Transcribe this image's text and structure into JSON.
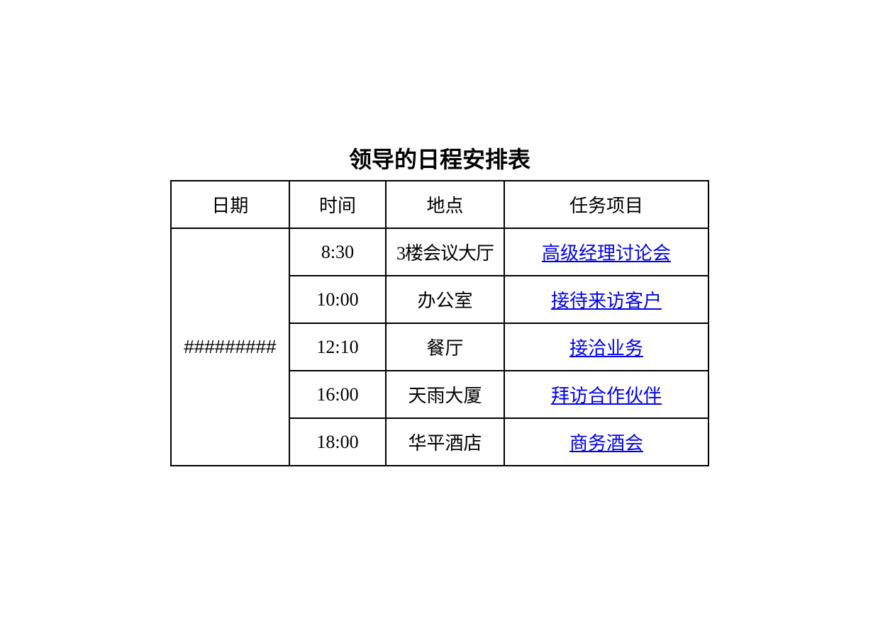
{
  "title": "领导的日程安排表",
  "headers": {
    "date": "日期",
    "time": "时间",
    "place": "地点",
    "task": "任务项目"
  },
  "date_label": "#########",
  "rows": [
    {
      "time": "8:30",
      "place": "3楼会议大厅",
      "task": "高级经理讨论会"
    },
    {
      "time": "10:00",
      "place": "办公室",
      "task": "接待来访客户"
    },
    {
      "time": "12:10",
      "place": "餐厅",
      "task": "接洽业务"
    },
    {
      "time": "16:00",
      "place": "天雨大厦",
      "task": "拜访合作伙伴"
    },
    {
      "time": "18:00",
      "place": "华平酒店",
      "task": "商务酒会"
    }
  ],
  "link_color": "#0000ee",
  "border_color": "#000000",
  "background_color": "#ffffff"
}
